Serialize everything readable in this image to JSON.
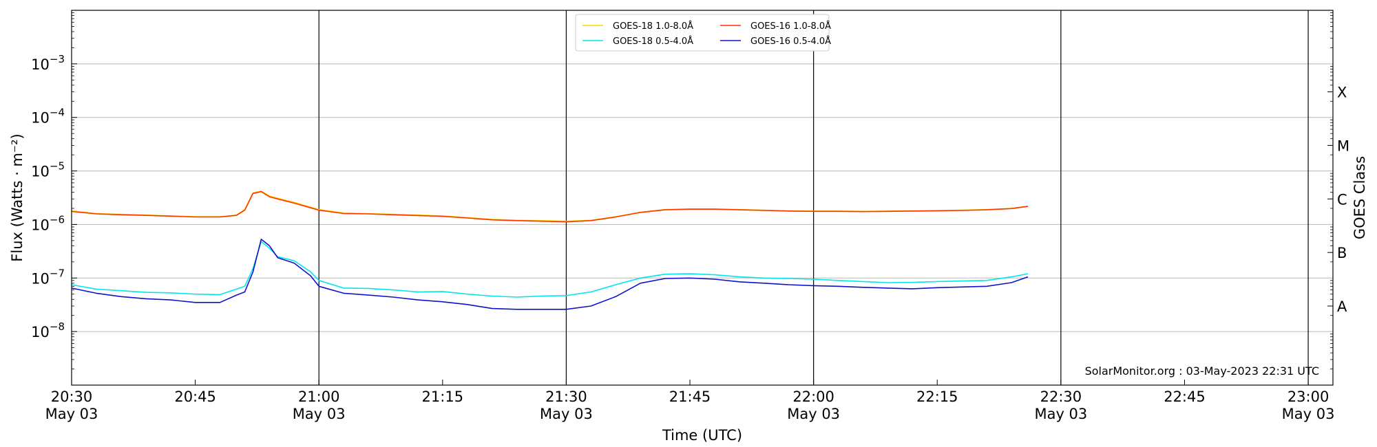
{
  "chart_data": {
    "type": "line",
    "xlabel": "Time (UTC)",
    "ylabel": "Flux (Watts · m⁻²)",
    "ylabel_right": "GOES Class",
    "y_scale": "log",
    "ylim": [
      1e-09,
      0.01
    ],
    "xlim": [
      "2023-05-03 20:30",
      "2023-05-03 23:03"
    ],
    "grid": "horizontal at decades; vertical lines at 30-minute marks",
    "legend_position": "top-center",
    "y_ticks": [
      {
        "exp": -3,
        "base": "10"
      },
      {
        "exp": -4,
        "base": "10"
      },
      {
        "exp": -5,
        "base": "10"
      },
      {
        "exp": -6,
        "base": "10"
      },
      {
        "exp": -7,
        "base": "10"
      },
      {
        "exp": -8,
        "base": "10"
      }
    ],
    "x_ticks": [
      {
        "time": "20:30",
        "date": "May 03",
        "label": "20:30"
      },
      {
        "time": "20:45",
        "date": "",
        "label": "20:45"
      },
      {
        "time": "21:00",
        "date": "May 03",
        "label": "21:00"
      },
      {
        "time": "21:15",
        "date": "",
        "label": "21:15"
      },
      {
        "time": "21:30",
        "date": "May 03",
        "label": "21:30"
      },
      {
        "time": "21:45",
        "date": "",
        "label": "21:45"
      },
      {
        "time": "22:00",
        "date": "May 03",
        "label": "22:00"
      },
      {
        "time": "22:15",
        "date": "",
        "label": "22:15"
      },
      {
        "time": "22:30",
        "date": "May 03",
        "label": "22:30"
      },
      {
        "time": "22:45",
        "date": "",
        "label": "22:45"
      },
      {
        "time": "23:00",
        "date": "May 03",
        "label": "23:00"
      }
    ],
    "vertical_lines": [
      "21:00",
      "21:30",
      "22:00",
      "22:30",
      "23:00"
    ],
    "goes_classes": [
      {
        "label": "X",
        "flux": 0.0003
      },
      {
        "label": "M",
        "flux": 3e-05
      },
      {
        "label": "C",
        "flux": 3e-06
      },
      {
        "label": "B",
        "flux": 3e-07
      },
      {
        "label": "A",
        "flux": 3e-08
      }
    ],
    "x": [
      "20:30",
      "20:33",
      "20:36",
      "20:39",
      "20:42",
      "20:45",
      "20:48",
      "20:50",
      "20:51",
      "20:52",
      "20:53",
      "20:54",
      "20:55",
      "20:57",
      "20:59",
      "21:00",
      "21:03",
      "21:06",
      "21:09",
      "21:12",
      "21:15",
      "21:18",
      "21:21",
      "21:24",
      "21:27",
      "21:30",
      "21:33",
      "21:36",
      "21:39",
      "21:42",
      "21:45",
      "21:48",
      "21:51",
      "21:54",
      "21:57",
      "22:00",
      "22:03",
      "22:06",
      "22:09",
      "22:12",
      "22:15",
      "22:18",
      "22:21",
      "22:24",
      "22:26"
    ],
    "series": [
      {
        "name": "GOES-18 1.0-8.0Å",
        "color": "#FFD700",
        "values": [
          1.8e-06,
          1.6e-06,
          1.55e-06,
          1.5e-06,
          1.45e-06,
          1.4e-06,
          1.4e-06,
          1.5e-06,
          1.9e-06,
          3.9e-06,
          4.2e-06,
          3.4e-06,
          3.1e-06,
          2.6e-06,
          2.1e-06,
          1.9e-06,
          1.65e-06,
          1.6e-06,
          1.55e-06,
          1.5e-06,
          1.45e-06,
          1.35e-06,
          1.25e-06,
          1.2e-06,
          1.18e-06,
          1.15e-06,
          1.2e-06,
          1.4e-06,
          1.7e-06,
          1.9e-06,
          1.95e-06,
          1.95e-06,
          1.9e-06,
          1.85e-06,
          1.8e-06,
          1.78e-06,
          1.78e-06,
          1.76e-06,
          1.78e-06,
          1.8e-06,
          1.82e-06,
          1.85e-06,
          1.9e-06,
          2e-06,
          2.2e-06
        ]
      },
      {
        "name": "GOES-16 1.0-8.0Å",
        "color": "#FF3300",
        "values": [
          1.75e-06,
          1.58e-06,
          1.52e-06,
          1.48e-06,
          1.43e-06,
          1.38e-06,
          1.38e-06,
          1.48e-06,
          1.85e-06,
          3.8e-06,
          4.1e-06,
          3.3e-06,
          3e-06,
          2.5e-06,
          2.05e-06,
          1.85e-06,
          1.6e-06,
          1.58e-06,
          1.52e-06,
          1.47e-06,
          1.42e-06,
          1.32e-06,
          1.22e-06,
          1.18e-06,
          1.15e-06,
          1.12e-06,
          1.18e-06,
          1.38e-06,
          1.68e-06,
          1.88e-06,
          1.93e-06,
          1.93e-06,
          1.88e-06,
          1.83e-06,
          1.78e-06,
          1.76e-06,
          1.76e-06,
          1.74e-06,
          1.76e-06,
          1.78e-06,
          1.8e-06,
          1.83e-06,
          1.88e-06,
          1.98e-06,
          2.18e-06
        ]
      },
      {
        "name": "GOES-18 0.5-4.0Å",
        "color": "#00E5EE",
        "values": [
          7.5e-08,
          6.2e-08,
          5.8e-08,
          5.4e-08,
          5.3e-08,
          5e-08,
          4.9e-08,
          6.2e-08,
          7e-08,
          1.5e-07,
          4.8e-07,
          3.6e-07,
          2.5e-07,
          2.1e-07,
          1.3e-07,
          9e-08,
          6.5e-08,
          6.4e-08,
          6e-08,
          5.5e-08,
          5.6e-08,
          5e-08,
          4.6e-08,
          4.4e-08,
          4.6e-08,
          4.7e-08,
          5.5e-08,
          7.5e-08,
          1e-07,
          1.18e-07,
          1.2e-07,
          1.15e-07,
          1.05e-07,
          1e-07,
          9.8e-08,
          9.5e-08,
          9e-08,
          8.6e-08,
          8.2e-08,
          8.3e-08,
          8.6e-08,
          8.8e-08,
          9e-08,
          1.05e-07,
          1.2e-07
        ]
      },
      {
        "name": "GOES-16 0.5-4.0Å",
        "color": "#1010CC",
        "values": [
          6.5e-08,
          5.2e-08,
          4.5e-08,
          4.1e-08,
          3.9e-08,
          3.5e-08,
          3.5e-08,
          4.8e-08,
          5.5e-08,
          1.3e-07,
          5.3e-07,
          4e-07,
          2.4e-07,
          1.9e-07,
          1.1e-07,
          7e-08,
          5.2e-08,
          4.8e-08,
          4.4e-08,
          3.9e-08,
          3.6e-08,
          3.2e-08,
          2.7e-08,
          2.6e-08,
          2.6e-08,
          2.6e-08,
          3e-08,
          4.5e-08,
          8e-08,
          9.8e-08,
          1e-07,
          9.5e-08,
          8.5e-08,
          8e-08,
          7.5e-08,
          7.2e-08,
          7e-08,
          6.7e-08,
          6.5e-08,
          6.3e-08,
          6.6e-08,
          6.8e-08,
          7e-08,
          8.2e-08,
          1.05e-07
        ]
      }
    ],
    "legend_columns": [
      [
        "GOES-18 1.0-8.0Å",
        "GOES-18 0.5-4.0Å"
      ],
      [
        "GOES-16 1.0-8.0Å",
        "GOES-16 0.5-4.0Å"
      ]
    ],
    "annotation": "SolarMonitor.org : 03-May-2023 22:31 UTC"
  }
}
